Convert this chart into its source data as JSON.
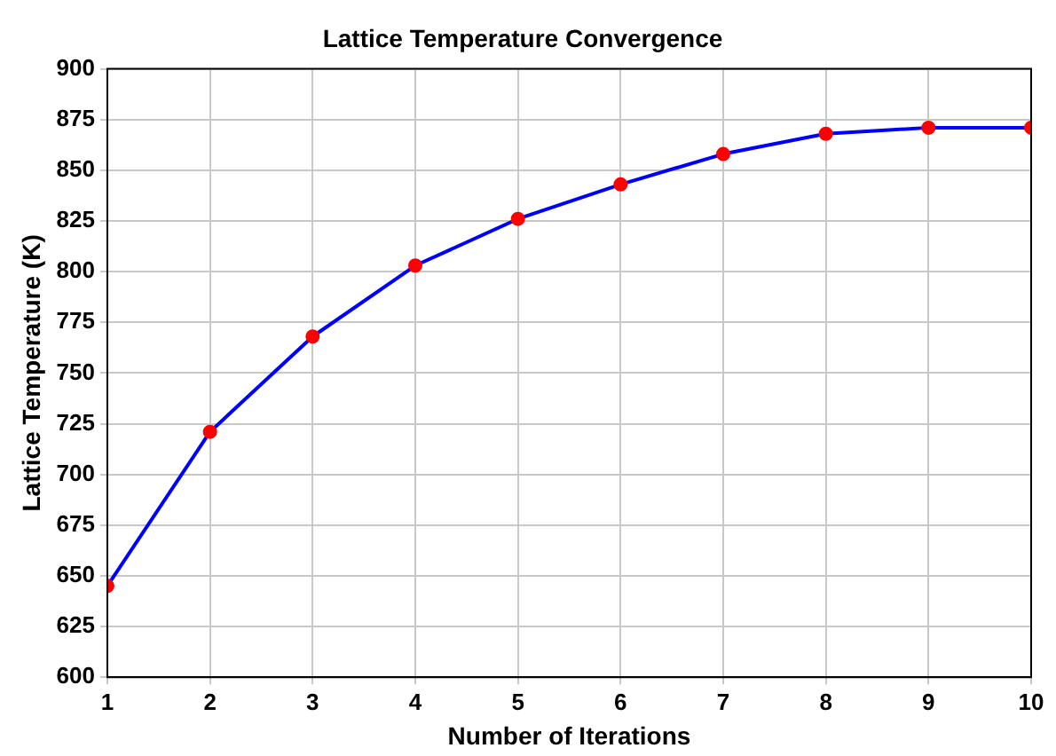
{
  "chart_data": {
    "type": "line",
    "title": "Lattice Temperature Convergence",
    "xlabel": "Number of Iterations",
    "ylabel": "Lattice Temperature (K)",
    "x": [
      1,
      2,
      3,
      4,
      5,
      6,
      7,
      8,
      9,
      10
    ],
    "series": [
      {
        "type": "line",
        "color": "#0000ff",
        "marker": "none",
        "values": [
          645,
          721,
          768,
          803,
          826,
          843,
          858,
          868,
          871,
          871
        ]
      },
      {
        "type": "scatter",
        "color": "#ff0000",
        "marker": "circle",
        "values": [
          645,
          721,
          768,
          803,
          826,
          843,
          858,
          868,
          871,
          871
        ]
      }
    ],
    "xlim": [
      1,
      10
    ],
    "xticks": [
      1,
      2,
      3,
      4,
      5,
      6,
      7,
      8,
      9,
      10
    ],
    "ylim": [
      600,
      900
    ],
    "yticks": [
      600,
      625,
      650,
      675,
      700,
      725,
      750,
      775,
      800,
      825,
      850,
      875,
      900
    ],
    "grid": true,
    "legend": false
  }
}
